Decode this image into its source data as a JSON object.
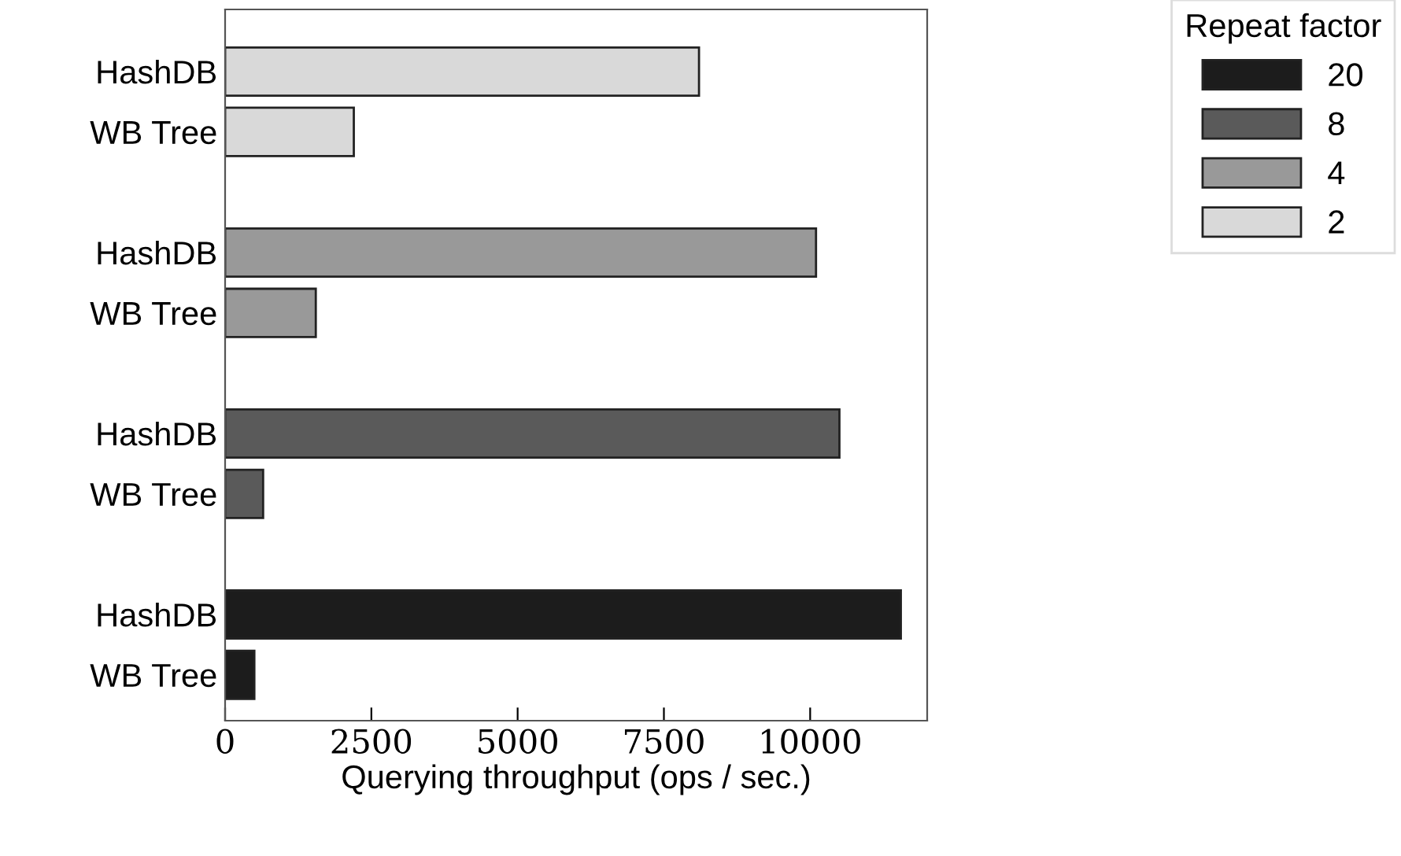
{
  "chart_data": {
    "type": "bar",
    "orientation": "horizontal",
    "xlabel": "Querying throughput (ops / sec.)",
    "legend_title": "Repeat factor",
    "legend": "top right",
    "grid": false,
    "categories": [
      "HashDB",
      "WB Tree",
      "HashDB",
      "WB Tree",
      "HashDB",
      "WB Tree",
      "HashDB",
      "WB Tree"
    ],
    "xlim": [
      0,
      12000
    ],
    "xticks": [
      0,
      2500,
      5000,
      7500,
      10000
    ],
    "series": [
      {
        "name": "20",
        "color": "#1c1c1c",
        "values": [
          null,
          null,
          null,
          null,
          null,
          null,
          11550,
          500
        ]
      },
      {
        "name": "8",
        "color": "#5a5a5a",
        "values": [
          null,
          null,
          null,
          null,
          10500,
          650,
          null,
          null
        ]
      },
      {
        "name": "4",
        "color": "#999999",
        "values": [
          null,
          null,
          10100,
          1550,
          null,
          null,
          null,
          null
        ]
      },
      {
        "name": "2",
        "color": "#d9d9d9",
        "values": [
          8100,
          2200,
          null,
          null,
          null,
          null,
          null,
          null
        ]
      }
    ]
  }
}
